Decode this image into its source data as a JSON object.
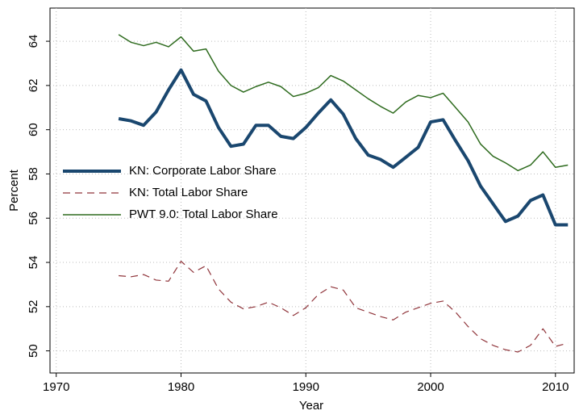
{
  "chart_data": {
    "type": "line",
    "x_label": "Year",
    "y_label": "Percent",
    "x": [
      1975,
      1976,
      1977,
      1978,
      1979,
      1980,
      1981,
      1982,
      1983,
      1984,
      1985,
      1986,
      1987,
      1988,
      1989,
      1990,
      1991,
      1992,
      1993,
      1994,
      1995,
      1996,
      1997,
      1998,
      1999,
      2000,
      2001,
      2002,
      2003,
      2004,
      2005,
      2006,
      2007,
      2008,
      2009,
      2010,
      2011
    ],
    "series": [
      {
        "name": "KN: Corporate Labor Share",
        "color": "#1a476f",
        "width": 4,
        "dash": "none",
        "values": [
          60.5,
          60.4,
          60.2,
          60.8,
          61.8,
          62.7,
          61.6,
          61.3,
          60.1,
          59.25,
          59.35,
          60.2,
          60.2,
          59.7,
          59.6,
          60.1,
          60.75,
          61.35,
          60.7,
          59.6,
          58.85,
          58.65,
          58.3,
          58.75,
          59.2,
          60.35,
          60.45,
          59.5,
          58.6,
          57.45,
          56.65,
          55.85,
          56.1,
          56.8,
          57.05,
          55.7,
          55.7
        ]
      },
      {
        "name": "KN: Total Labor Share",
        "color": "#90353b",
        "width": 1.2,
        "dash": "9 6",
        "values": [
          53.4,
          53.35,
          53.45,
          53.2,
          53.15,
          54.05,
          53.55,
          53.85,
          52.8,
          52.2,
          51.9,
          52.0,
          52.2,
          51.95,
          51.6,
          51.95,
          52.55,
          52.9,
          52.75,
          51.95,
          51.75,
          51.55,
          51.4,
          51.75,
          51.95,
          52.15,
          52.25,
          51.75,
          51.1,
          50.55,
          50.25,
          50.05,
          49.95,
          50.25,
          51.0,
          50.2,
          50.35
        ]
      },
      {
        "name": "PWT 9.0: Total Labor Share",
        "color": "#2e6b1e",
        "width": 1.5,
        "dash": "none",
        "values": [
          64.3,
          63.95,
          63.8,
          63.95,
          63.75,
          64.2,
          63.55,
          63.65,
          62.65,
          62.0,
          61.7,
          61.95,
          62.15,
          61.95,
          61.5,
          61.65,
          61.9,
          62.45,
          62.2,
          61.8,
          61.4,
          61.05,
          60.75,
          61.25,
          61.55,
          61.45,
          61.65,
          61.0,
          60.35,
          59.35,
          58.8,
          58.5,
          58.15,
          58.4,
          59.0,
          58.3,
          58.4
        ]
      }
    ],
    "xlim": [
      1969.5,
      2011.5
    ],
    "ylim": [
      49,
      65.5
    ],
    "xticks": [
      1970,
      1980,
      1990,
      2000,
      2010
    ],
    "yticks": [
      50,
      52,
      54,
      56,
      58,
      60,
      62,
      64
    ],
    "grid": true,
    "legend": "left"
  }
}
